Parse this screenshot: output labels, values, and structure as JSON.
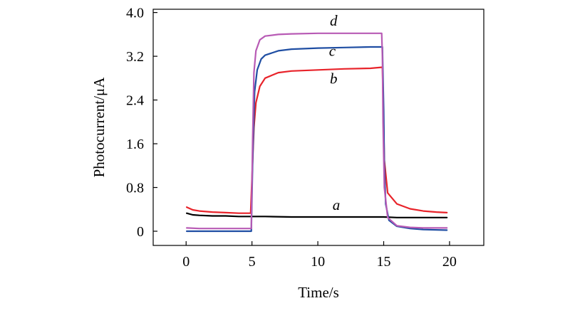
{
  "chart_data": {
    "type": "line",
    "title": "",
    "xlabel": "Time/s",
    "ylabel": "Photocurrent/μA",
    "xlim": [
      -2.5,
      22.6
    ],
    "ylim": [
      -0.26,
      4.06
    ],
    "xticks": [
      0,
      5,
      10,
      15,
      20
    ],
    "xtick_labels": [
      "0",
      "5",
      "10",
      "15",
      "20"
    ],
    "yticks": [
      0,
      0.8,
      1.6,
      2.4,
      3.2,
      4.0
    ],
    "ytick_labels": [
      "0",
      "0.8",
      "1.6",
      "2.4",
      "3.2",
      "4.0"
    ],
    "grid": false,
    "legend": "none",
    "light_on": 5,
    "light_off": 15,
    "series": [
      {
        "name": "a",
        "color": "#000000",
        "x": [
          0.05,
          0.5,
          1,
          2,
          3,
          4,
          5,
          6,
          8,
          10,
          12,
          14,
          15,
          16,
          18,
          19.8
        ],
        "values": [
          0.33,
          0.3,
          0.29,
          0.28,
          0.28,
          0.27,
          0.27,
          0.27,
          0.26,
          0.26,
          0.26,
          0.26,
          0.26,
          0.25,
          0.25,
          0.25
        ]
      },
      {
        "name": "b",
        "color": "#e8232a",
        "x": [
          0.05,
          0.5,
          1,
          2,
          3,
          4,
          4.9,
          5.0,
          5.15,
          5.3,
          5.6,
          6,
          7,
          8,
          10,
          12,
          14,
          14.9,
          14.95,
          15.05,
          15.3,
          16,
          17,
          18,
          19,
          19.8
        ],
        "values": [
          0.44,
          0.39,
          0.37,
          0.35,
          0.34,
          0.33,
          0.33,
          0.95,
          1.9,
          2.35,
          2.65,
          2.8,
          2.9,
          2.93,
          2.95,
          2.97,
          2.98,
          3.0,
          2.5,
          1.3,
          0.7,
          0.5,
          0.41,
          0.37,
          0.35,
          0.34
        ]
      },
      {
        "name": "c",
        "color": "#1f4ea3",
        "x": [
          0.05,
          1,
          2,
          3,
          4,
          4.95,
          5.05,
          5.2,
          5.4,
          5.7,
          6,
          7,
          8,
          10,
          12,
          14,
          14.9,
          15.0,
          15.05,
          15.15,
          15.4,
          16,
          17,
          18,
          19.8
        ],
        "values": [
          0.0,
          0.0,
          0.0,
          0.0,
          0.0,
          0.0,
          1.3,
          2.55,
          2.95,
          3.15,
          3.22,
          3.3,
          3.33,
          3.35,
          3.36,
          3.37,
          3.37,
          2.2,
          1.2,
          0.5,
          0.2,
          0.09,
          0.05,
          0.03,
          0.02
        ]
      },
      {
        "name": "d",
        "color": "#b85bb5",
        "x": [
          0.05,
          1,
          2,
          3,
          4,
          4.95,
          5.05,
          5.15,
          5.3,
          5.6,
          6,
          7,
          8,
          10,
          12,
          14,
          14.85,
          14.9,
          14.95,
          15.05,
          15.3,
          16,
          17,
          18,
          19.8
        ],
        "values": [
          0.06,
          0.05,
          0.05,
          0.05,
          0.05,
          0.05,
          1.7,
          2.9,
          3.3,
          3.5,
          3.57,
          3.6,
          3.61,
          3.62,
          3.62,
          3.62,
          3.62,
          3.2,
          2.0,
          0.8,
          0.25,
          0.1,
          0.07,
          0.06,
          0.06
        ]
      }
    ],
    "annotations": [
      {
        "text": "a",
        "x": 11.4,
        "y": 0.39,
        "series": "a"
      },
      {
        "text": "b",
        "x": 11.2,
        "y": 2.7,
        "series": "b"
      },
      {
        "text": "c",
        "x": 11.1,
        "y": 3.21,
        "series": "c"
      },
      {
        "text": "d",
        "x": 11.2,
        "y": 3.76,
        "series": "d"
      }
    ]
  }
}
